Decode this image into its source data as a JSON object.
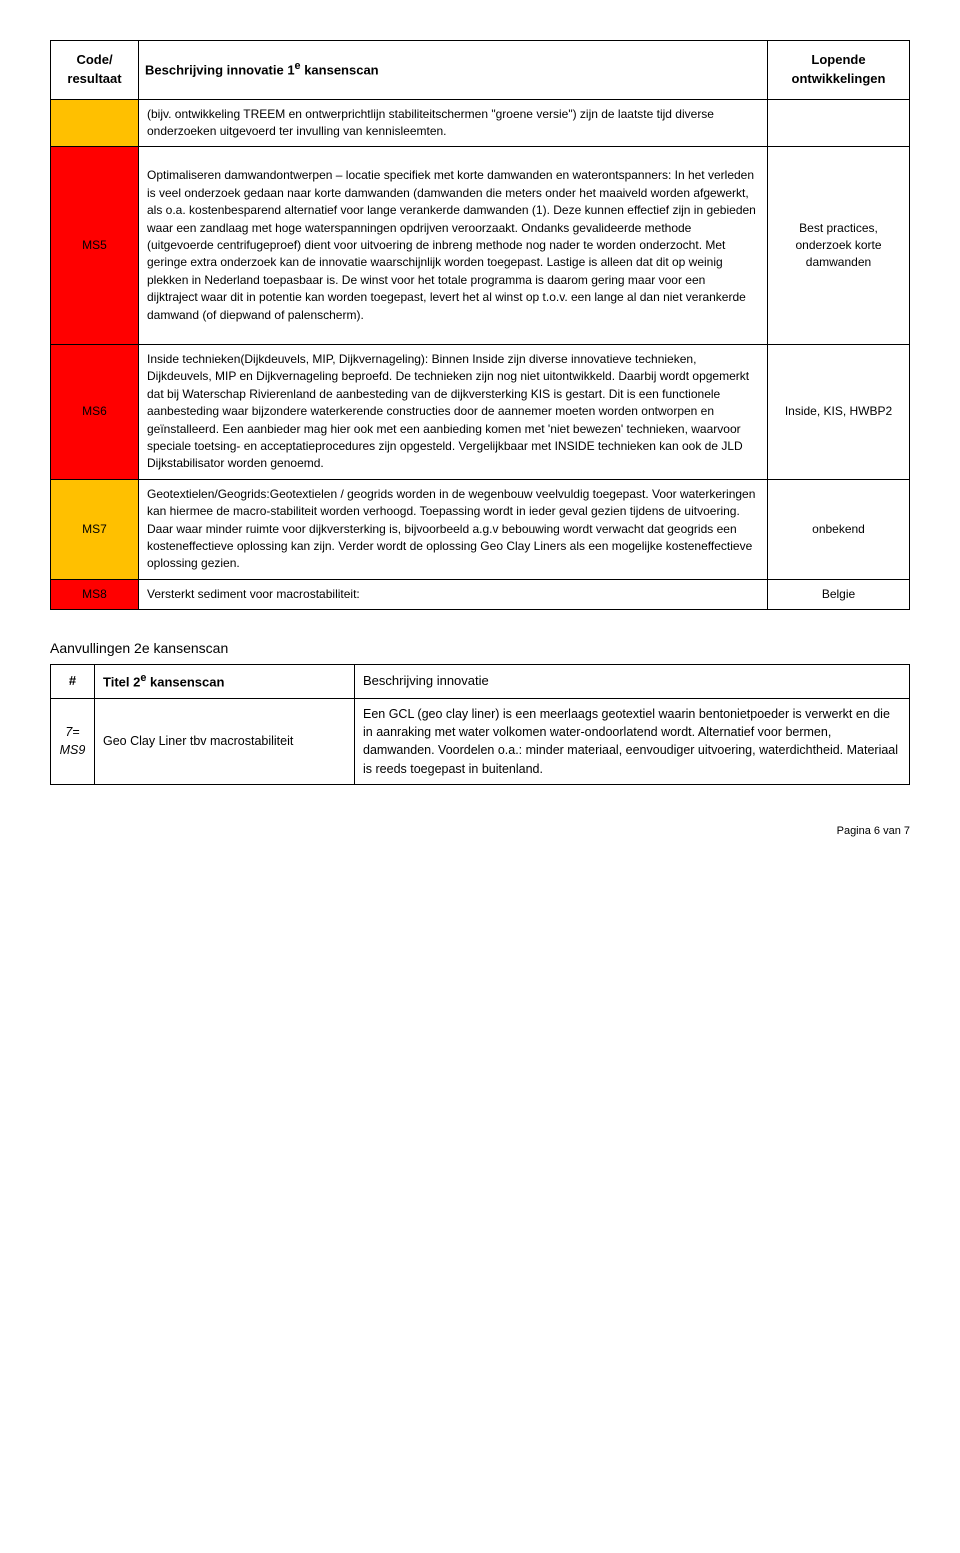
{
  "header": {
    "col1_line1": "Code/",
    "col1_line2": "resultaat",
    "col2": "Beschrijving innovatie 1",
    "col2_sup": "e",
    "col2_tail": " kansenscan",
    "col3_line1": "Lopende",
    "col3_line2": "ontwikkelingen"
  },
  "rows": [
    {
      "code_color": "yellow",
      "code": "",
      "desc": "(bijv. ontwikkeling TREEM en ontwerprichtlijn stabiliteitschermen \"groene versie\") zijn de laatste tijd diverse onderzoeken uitgevoerd ter invulling van kennisleemten.",
      "dev": ""
    },
    {
      "code_color": "red",
      "code": "MS5",
      "desc": "Optimaliseren damwandontwerpen – locatie specifiek met korte damwanden en waterontspanners: In het verleden is veel onderzoek gedaan naar korte damwanden (damwanden die meters onder het maaiveld worden afgewerkt, als o.a. kostenbesparend alternatief voor lange verankerde damwanden (1). Deze kunnen effectief zijn in gebieden waar een zandlaag met hoge waterspanningen opdrijven veroorzaakt. Ondanks gevalideerde methode (uitgevoerde centrifugeproef) dient voor uitvoering de inbreng methode nog nader te worden onderzocht. Met geringe extra onderzoek kan de innovatie waarschijnlijk worden toegepast. Lastige is alleen dat dit op weinig plekken in Nederland toepasbaar is. De winst voor het totale programma is daarom gering maar voor een dijktraject waar dit in potentie kan worden toegepast, levert het al winst op  t.o.v. een lange al dan niet verankerde damwand (of diepwand of palenscherm).",
      "dev": "Best practices, onderzoek korte damwanden"
    },
    {
      "code_color": "red",
      "code": "MS6",
      "desc": "Inside technieken(Dijkdeuvels, MIP, Dijkvernageling): Binnen Inside zijn diverse innovatieve technieken, Dijkdeuvels, MIP en Dijkvernageling beproefd. De technieken zijn nog niet uitontwikkeld. Daarbij wordt opgemerkt dat bij Waterschap Rivierenland de aanbesteding van de dijkversterking KIS is gestart. Dit is een functionele aanbesteding waar bijzondere waterkerende constructies door de aannemer moeten worden ontworpen en geïnstalleerd. Een aanbieder mag hier ook met een aanbieding komen met 'niet bewezen' technieken, waarvoor speciale toetsing- en acceptatieprocedures zijn opgesteld. Vergelijkbaar met INSIDE technieken kan ook de JLD Dijkstabilisator worden genoemd.",
      "dev": "Inside, KIS, HWBP2"
    },
    {
      "code_color": "yellow",
      "code": "MS7",
      "desc": "Geotextielen/Geogrids:Geotextielen / geogrids worden in de wegenbouw veelvuldig toegepast. Voor waterkeringen kan hiermee de macro-stabiliteit worden verhoogd. Toepassing wordt in ieder geval gezien tijdens de uitvoering. Daar waar  minder ruimte voor dijkversterking is, bijvoorbeeld a.g.v bebouwing wordt verwacht dat geogrids een kosteneffectieve oplossing kan zijn. Verder wordt de oplossing Geo Clay Liners als een mogelijke kosteneffectieve oplossing gezien.",
      "dev": "onbekend"
    },
    {
      "code_color": "red",
      "code": "MS8",
      "desc": "Versterkt sediment voor macrostabiliteit:",
      "dev": "Belgie"
    }
  ],
  "section2_title": "Aanvullingen 2e kansenscan",
  "table2": {
    "header": {
      "col1": "#",
      "col2_pre": "Titel 2",
      "col2_sup": "e",
      "col2_tail": " kansenscan",
      "col3": "Beschrijving innovatie"
    },
    "rows": [
      {
        "num_line1": "7=",
        "num_line2": "MS9",
        "title": "Geo Clay Liner tbv macrostabiliteit",
        "desc": "Een GCL (geo clay liner) is een meerlaags geotextiel waarin bentonietpoeder is verwerkt en die in aanraking met water volkomen water-ondoorlatend wordt. Alternatief voor bermen, damwanden. Voordelen o.a.: minder materiaal, eenvoudiger uitvoering, waterdichtheid. Materiaal is reeds toegepast in buitenland."
      }
    ]
  },
  "footer": "Pagina 6 van 7"
}
